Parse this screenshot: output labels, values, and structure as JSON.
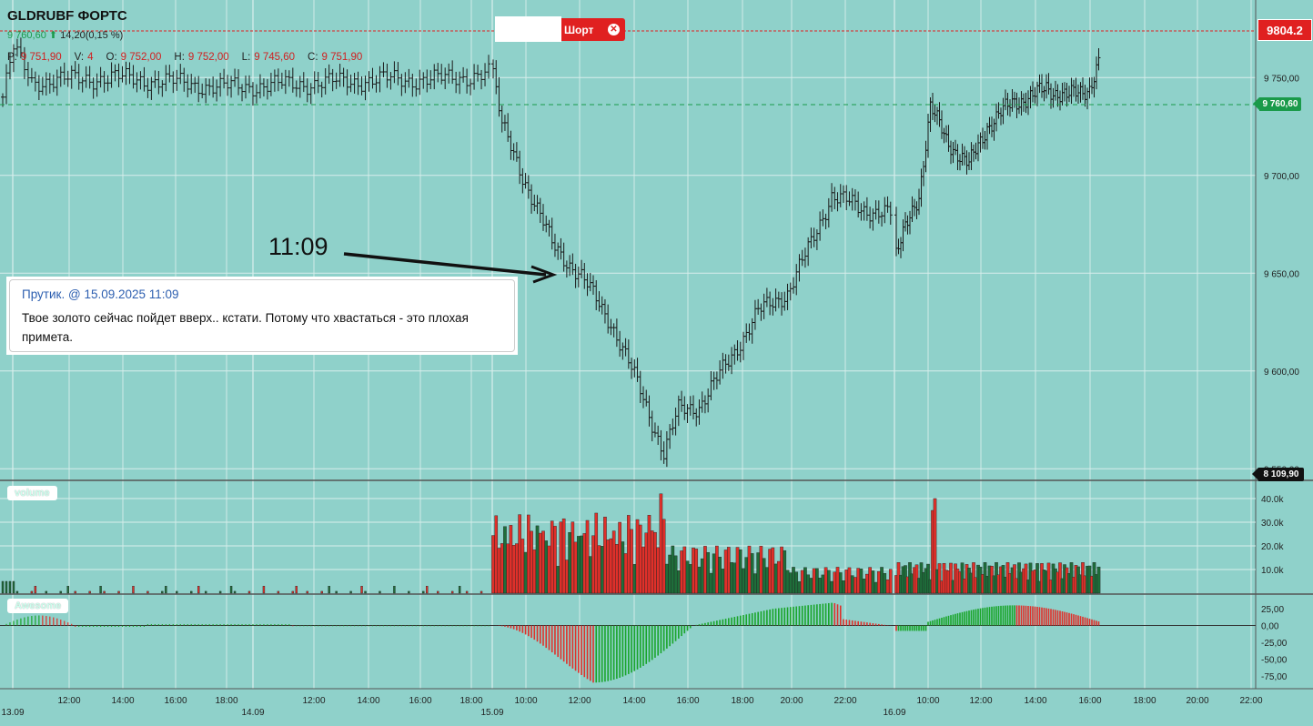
{
  "symbol": "GLDRUBF ФОРТС",
  "quote": {
    "last": "9 760,60",
    "change": "14,20(0,15 %)",
    "direction_icon": "arrow-up-icon"
  },
  "ohlc": [
    {
      "key": "P:",
      "value": "9 751,90"
    },
    {
      "key": "V:",
      "value": "4"
    },
    {
      "key": "O:",
      "value": "9 752,00"
    },
    {
      "key": "H:",
      "value": "9 752,00"
    },
    {
      "key": "L:",
      "value": "9 745,60"
    },
    {
      "key": "C:",
      "value": "9 751,90"
    }
  ],
  "order_button": {
    "label": "Шорт",
    "close_icon": "close-icon"
  },
  "price_labels": {
    "target": "9804.2",
    "current": "9 760,60",
    "black": "8 109,90"
  },
  "annotation": "11:09",
  "comment": {
    "author": "Прутик.",
    "at": "@",
    "datetime": "15.09.2025 11:09",
    "text": "Твое золото сейчас пойдет вверх.. кстати. Потому что хвастаться - это плохая примета."
  },
  "panels": {
    "volume": "volume",
    "awesome": "Awesome"
  },
  "colors": {
    "background": "#8fd1ca",
    "up": "#1e6e3a",
    "down": "#e0302a",
    "ao_up": "#1aa52a",
    "ao_down": "#e0302a",
    "target_line": "#e02020",
    "current_line": "#1a9a4a"
  },
  "chart_data": [
    {
      "type": "bar",
      "title": "GLDRUBF ФОРТС",
      "price_axis": {
        "ylim": [
          9545,
          9785
        ],
        "ticks": [
          9550,
          9600,
          9650,
          9700,
          9750
        ],
        "tick_labels": [
          "9 550,00",
          "9 600,00",
          "9 650,00",
          "9 700,00",
          "9 750,00"
        ]
      },
      "time_axis": {
        "ticks": [
          "13.09",
          "12:00",
          "14:00",
          "16:00",
          "18:00",
          "14.09",
          "12:00",
          "14:00",
          "16:00",
          "18:00",
          "15.09",
          "10:00",
          "12:00",
          "14:00",
          "16:00",
          "18:00",
          "20:00",
          "22:00",
          "16.09",
          "10:00",
          "12:00",
          "14:00",
          "16:00",
          "18:00",
          "20:00",
          "22:00"
        ]
      },
      "segments": [
        {
          "n": 135,
          "anchors": [
            [
              0,
              9740
            ],
            [
              3,
              9765
            ],
            [
              8,
              9748
            ],
            [
              30,
              9750
            ],
            [
              45,
              9748
            ],
            [
              60,
              9745
            ],
            [
              85,
              9747
            ],
            [
              105,
              9749
            ],
            [
              120,
              9749
            ],
            [
              135,
              9752
            ]
          ]
        },
        {
          "n": 136,
          "anchors": [
            [
              0,
              9752
            ],
            [
              3,
              9725
            ],
            [
              10,
              9700
            ],
            [
              20,
              9665
            ],
            [
              30,
              9648
            ],
            [
              40,
              9625
            ],
            [
              50,
              9590
            ],
            [
              58,
              9558
            ],
            [
              63,
              9580
            ],
            [
              70,
              9582
            ],
            [
              80,
              9605
            ],
            [
              90,
              9630
            ],
            [
              100,
              9640
            ],
            [
              108,
              9665
            ],
            [
              115,
              9690
            ],
            [
              125,
              9683
            ],
            [
              135,
              9680
            ]
          ]
        },
        {
          "n": 90,
          "anchors": [
            [
              0,
              9660
            ],
            [
              10,
              9690
            ],
            [
              15,
              9735
            ],
            [
              22,
              9718
            ],
            [
              32,
              9705
            ],
            [
              40,
              9725
            ],
            [
              52,
              9738
            ],
            [
              60,
              9740
            ],
            [
              66,
              9745
            ],
            [
              75,
              9740
            ],
            [
              85,
              9745
            ],
            [
              90,
              9760
            ]
          ]
        }
      ]
    },
    {
      "type": "bar",
      "title": "volume",
      "ylim": [
        0,
        45000
      ],
      "ticks": [
        "10.0k",
        "20.0k",
        "30.0k",
        "40.0k"
      ]
    },
    {
      "type": "bar",
      "title": "Awesome",
      "ylim": [
        -90,
        40
      ],
      "ticks": [
        "25,00",
        "0,00",
        "-25,00",
        "-50,00",
        "-75,00"
      ]
    }
  ]
}
